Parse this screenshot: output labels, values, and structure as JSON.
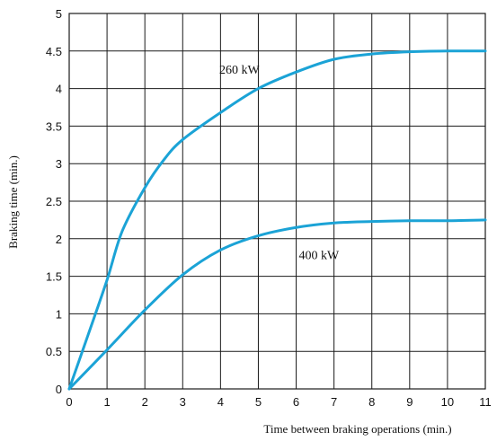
{
  "chart_data": {
    "type": "line",
    "title": "",
    "xlabel": "Time between braking operations (min.)",
    "ylabel": "Braking time (min.)",
    "xlim": [
      0,
      11
    ],
    "ylim": [
      0,
      5
    ],
    "x_ticks": [
      "0",
      "1",
      "2",
      "3",
      "4",
      "5",
      "6",
      "7",
      "8",
      "9",
      "10",
      "11"
    ],
    "y_ticks": [
      "0",
      "0.5",
      "1",
      "1.5",
      "2",
      "2.5",
      "3",
      "3.5",
      "4",
      "4.5",
      "5"
    ],
    "grid": true,
    "legend": "none",
    "series": [
      {
        "name": "260 kW",
        "color": "#1ba3d6",
        "x": [
          0,
          0.5,
          1,
          1.4,
          2,
          2.5,
          3,
          4,
          5,
          6,
          7,
          8,
          9,
          10,
          11
        ],
        "y": [
          0,
          0.72,
          1.45,
          2.1,
          2.68,
          3.05,
          3.32,
          3.68,
          4.0,
          4.22,
          4.39,
          4.46,
          4.49,
          4.5,
          4.5
        ]
      },
      {
        "name": "400 kW",
        "color": "#1ba3d6",
        "x": [
          0,
          1,
          2,
          3,
          4,
          5,
          6,
          7,
          8,
          9,
          10,
          11
        ],
        "y": [
          0,
          0.52,
          1.05,
          1.52,
          1.85,
          2.04,
          2.15,
          2.21,
          2.23,
          2.24,
          2.24,
          2.25
        ]
      }
    ],
    "annotations": [
      {
        "text": "260 kW",
        "x": 4.5,
        "y": 4.2
      },
      {
        "text": "400 kW",
        "x": 6.6,
        "y": 1.73
      }
    ]
  }
}
